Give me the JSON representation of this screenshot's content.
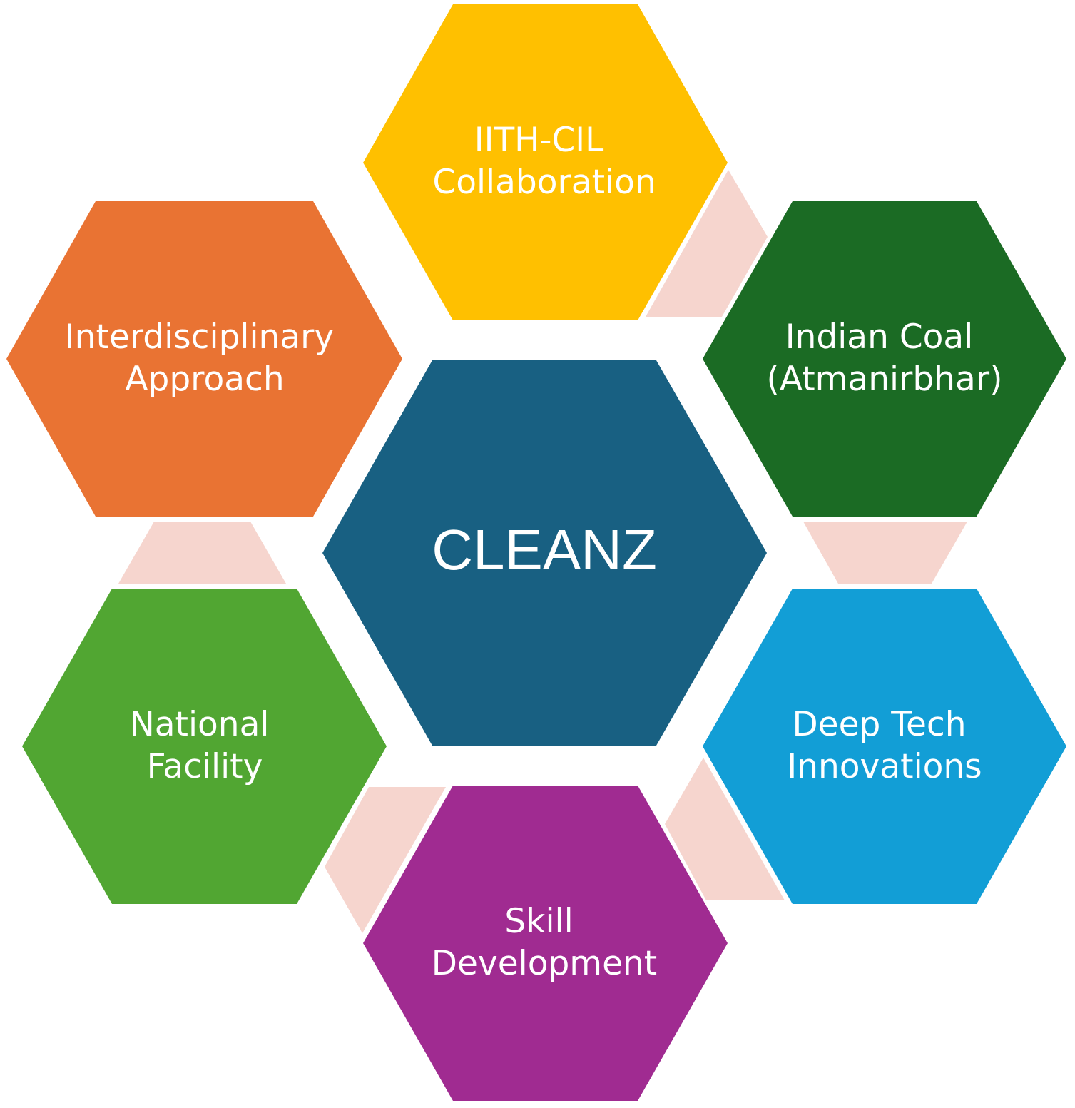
{
  "colors": {
    "connector": "#F6D5CE",
    "text": "#FFFFFF"
  },
  "center": {
    "label": "CLEANZ",
    "color": "#186082"
  },
  "nodes": [
    {
      "id": "collab",
      "lines": [
        "IITH-CIL",
        "Collaboration"
      ],
      "color": "#FFC000"
    },
    {
      "id": "coal",
      "lines": [
        "Indian Coal",
        "(Atmanirbhar)"
      ],
      "color": "#1B6B24"
    },
    {
      "id": "deeptech",
      "lines": [
        "Deep Tech",
        "Innovations"
      ],
      "color": "#129ED6"
    },
    {
      "id": "skill",
      "lines": [
        "Skill",
        "Development"
      ],
      "color": "#A02B91"
    },
    {
      "id": "national",
      "lines": [
        "National",
        "Facility"
      ],
      "color": "#51A632"
    },
    {
      "id": "interdisciplinary",
      "lines": [
        "Interdisciplinary",
        "Approach"
      ],
      "color": "#E97333"
    }
  ]
}
